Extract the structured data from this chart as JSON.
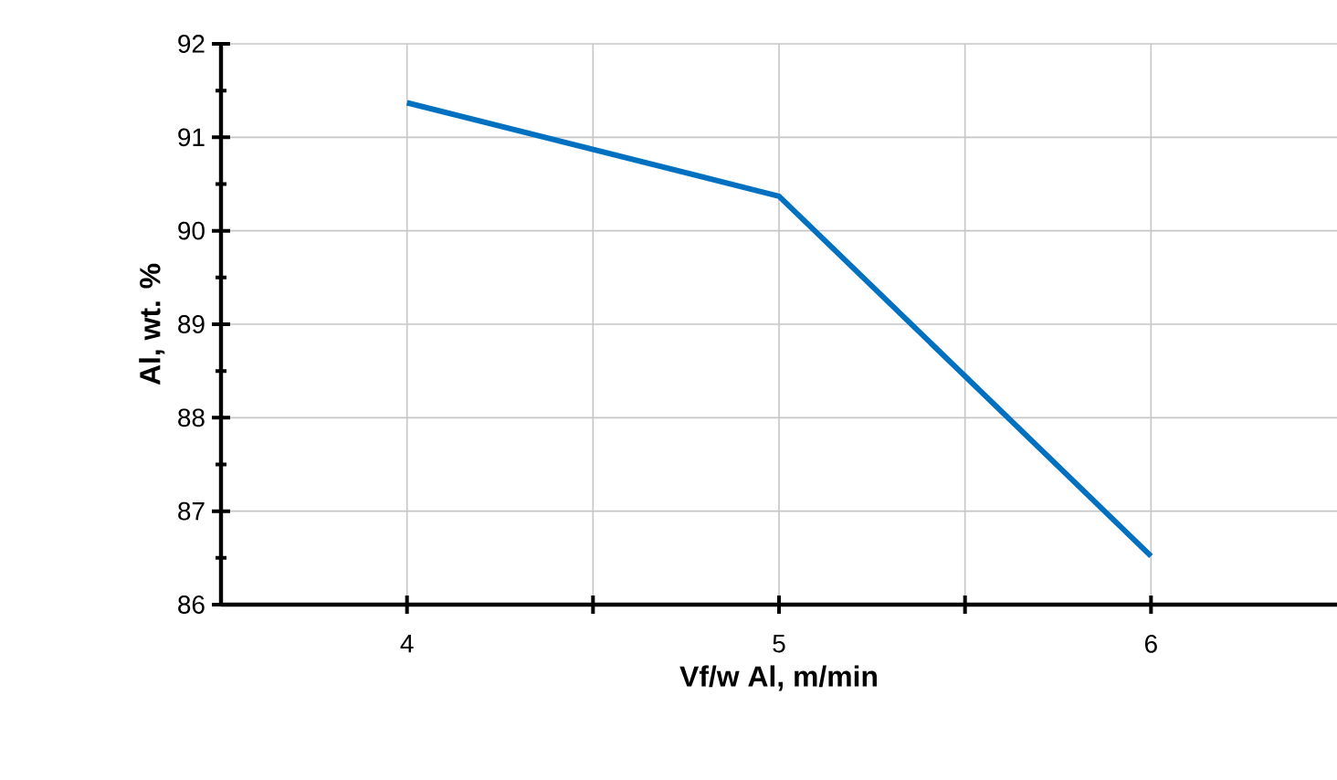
{
  "chart_data": {
    "type": "line",
    "xlabel": "Vf/w Al, m/min",
    "ylabel": "Al, wt. %",
    "x": [
      4,
      5,
      6
    ],
    "series": [
      {
        "color": "#0070c0",
        "values": [
          91.37,
          90.37,
          86.52
        ]
      }
    ],
    "xlim": [
      3.5,
      6.5
    ],
    "xticks": [
      4,
      {
        "value": 4.5,
        "label": null
      },
      5,
      {
        "value": 5.5,
        "label": null
      },
      6
    ],
    "ylim": [
      86,
      92
    ],
    "yticks": [
      86,
      87,
      88,
      89,
      90,
      91,
      92
    ],
    "grid": true,
    "marker": "none",
    "line_style": "solid"
  }
}
